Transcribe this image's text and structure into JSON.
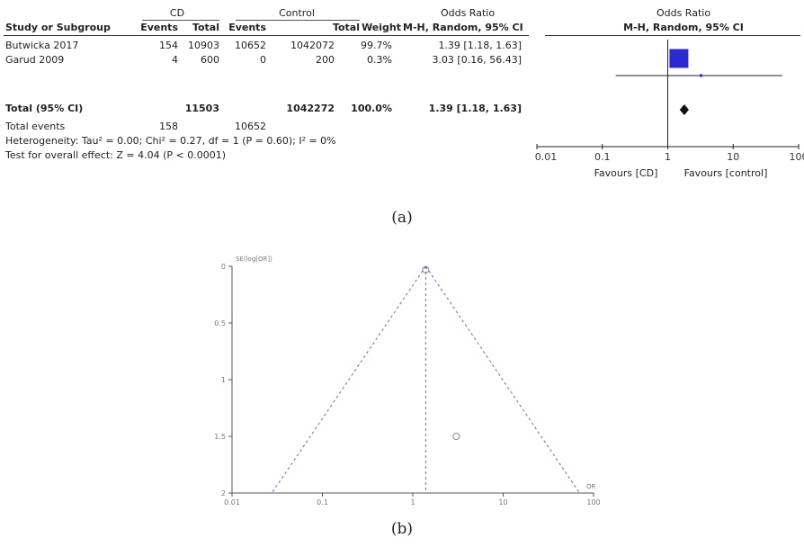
{
  "forest": {
    "group_headers": {
      "cd": "CD",
      "control": "Control",
      "or_table": "Odds Ratio",
      "or_plot": "Odds Ratio"
    },
    "columns": {
      "study": "Study or Subgroup",
      "cd_events": "Events",
      "cd_total": "Total",
      "ctrl_events": "Events",
      "ctrl_total": "Total",
      "weight": "Weight",
      "or_ci": "M-H, Random, 95% CI",
      "plot_method": "M-H, Random, 95% CI"
    },
    "rows": [
      {
        "study": "Butwicka 2017",
        "cd_events": "154",
        "cd_total": "10903",
        "ctrl_events": "10652",
        "ctrl_total": "1042072",
        "weight": "99.7%",
        "or_ci": "1.39 [1.18, 1.63]"
      },
      {
        "study": "Garud 2009",
        "cd_events": "4",
        "cd_total": "600",
        "ctrl_events": "0",
        "ctrl_total": "200",
        "weight": "0.3%",
        "or_ci": "3.03 [0.16, 56.43]"
      }
    ],
    "total": {
      "label": "Total (95% CI)",
      "cd_total": "11503",
      "ctrl_total": "1042272",
      "weight": "100.0%",
      "or_ci": "1.39 [1.18, 1.63]"
    },
    "total_events": {
      "label": "Total events",
      "cd": "158",
      "ctrl": "10652"
    },
    "heterogeneity": "Heterogeneity: Tau² = 0.00; Chi² = 0.27, df = 1 (P = 0.60); I² = 0%",
    "overall_effect": "Test for overall effect: Z = 4.04 (P < 0.0001)",
    "favours_left": "Favours [CD]",
    "favours_right": "Favours [control]",
    "caption": "(a)"
  },
  "funnel": {
    "caption": "(b)"
  },
  "chart_data": [
    {
      "type": "forest",
      "scale": "log",
      "xlim": [
        0.01,
        100
      ],
      "x_ticks": [
        "0.01",
        "0.1",
        "1",
        "10",
        "100"
      ],
      "studies": [
        {
          "name": "Butwicka 2017",
          "or": 1.39,
          "ci": [
            1.18,
            1.63
          ],
          "weight": 99.7
        },
        {
          "name": "Garud 2009",
          "or": 3.03,
          "ci": [
            0.16,
            56.43
          ],
          "weight": 0.3
        }
      ],
      "pooled": {
        "or": 1.39,
        "ci": [
          1.18,
          1.63
        ]
      },
      "colors": {
        "box": "#2a2acf",
        "diamond": "#111111"
      }
    },
    {
      "type": "scatter",
      "xscale": "log",
      "xlim": [
        0.01,
        100
      ],
      "ylim": [
        0,
        2
      ],
      "y_inverted": true,
      "ylabel": "SE(log[OR])",
      "xlabel": "OR",
      "x_ticks": [
        "0.01",
        "0.1",
        "1",
        "10",
        "100"
      ],
      "y_ticks": [
        "0",
        "0.5",
        "1",
        "1.5",
        "2"
      ],
      "points": [
        {
          "x": 1.39,
          "y": 0.03
        },
        {
          "x": 3.03,
          "y": 1.5
        }
      ],
      "pooled_or": 1.39,
      "colors": {
        "guide": "#5a6fd0",
        "point": "#888888"
      }
    }
  ]
}
